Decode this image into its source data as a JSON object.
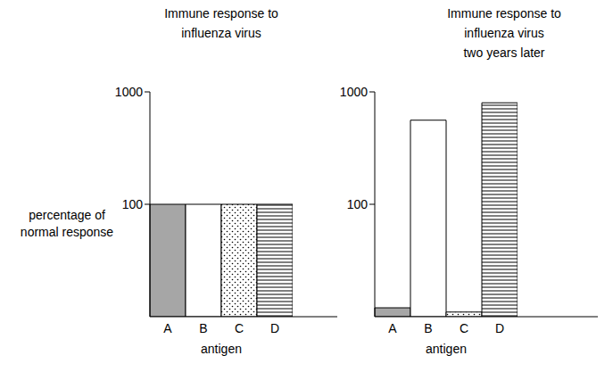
{
  "chart_data": [
    {
      "type": "bar",
      "title": "Immune response to\ninfluenza virus",
      "y_label": "percentage of\nnormal response",
      "x_label": "antigen",
      "categories": [
        "A",
        "B",
        "C",
        "D"
      ],
      "values": [
        100,
        100,
        100,
        100
      ],
      "colors": [
        "#a6a6a6",
        "#ffffff",
        "#ffffff",
        "#ffffff"
      ],
      "log": "y",
      "ylim": [
        10,
        1000
      ],
      "yticks": [
        100,
        1000
      ]
    },
    {
      "type": "bar",
      "title": "Immune response to\ninfluenza virus\ntwo years later",
      "x_label": "antigen",
      "categories": [
        "A",
        "B",
        "C",
        "D"
      ],
      "values": [
        12,
        560,
        11,
        800
      ],
      "colors": [
        "#a6a6a6",
        "#ffffff",
        "#ffffff",
        "#ffffff"
      ],
      "log": "y",
      "ylim": [
        10,
        1000
      ],
      "yticks": [
        100,
        1000
      ]
    }
  ]
}
